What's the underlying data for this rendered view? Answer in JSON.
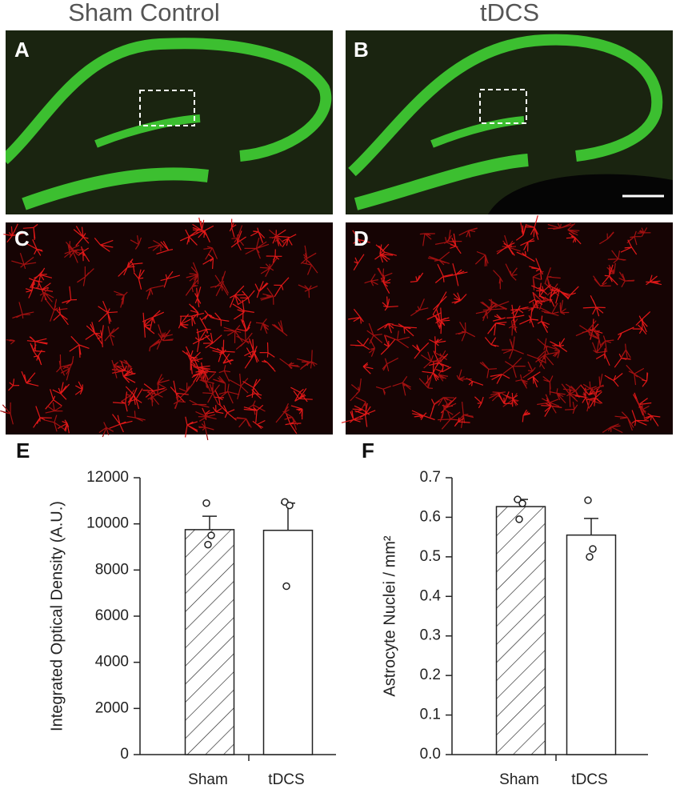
{
  "column_titles": [
    "Sham Control",
    "tDCS"
  ],
  "panel_labels": [
    "A",
    "B",
    "C",
    "D"
  ],
  "chart_data": [
    {
      "type": "bar",
      "panel": "E",
      "ylabel": "Integrated Optical Density (A.U.)",
      "categories": [
        "Sham",
        "tDCS"
      ],
      "values": [
        9750,
        9720
      ],
      "errors": [
        580,
        1180
      ],
      "points": [
        [
          10900,
          9500,
          9100
        ],
        [
          10950,
          10800,
          7300
        ]
      ],
      "fill_patterns": [
        "hatch",
        "none"
      ],
      "ylim": [
        0,
        12000
      ],
      "yticks": [
        0,
        2000,
        4000,
        6000,
        8000,
        10000,
        12000
      ]
    },
    {
      "type": "bar",
      "panel": "F",
      "ylabel": "Astrocyte Nuclei / mm²",
      "categories": [
        "Sham",
        "tDCS"
      ],
      "values": [
        0.627,
        0.555
      ],
      "errors": [
        0.018,
        0.042
      ],
      "points": [
        [
          0.645,
          0.635,
          0.595
        ],
        [
          0.643,
          0.52,
          0.5
        ]
      ],
      "fill_patterns": [
        "hatch",
        "none"
      ],
      "ylim": [
        0,
        0.7
      ],
      "yticks": [
        {
          "value": 0,
          "label": "0.0"
        },
        0.1,
        0.2,
        0.3,
        0.4,
        0.5,
        0.6,
        0.7
      ]
    }
  ]
}
